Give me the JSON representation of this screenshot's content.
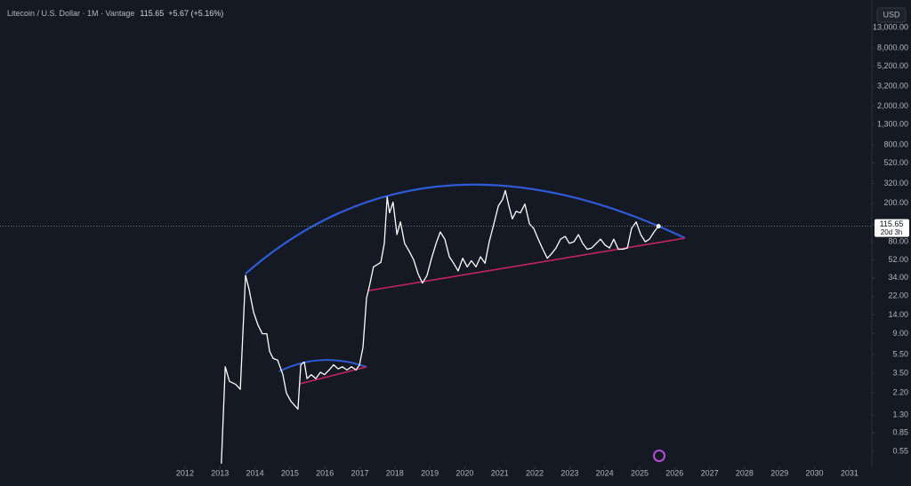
{
  "header": {
    "symbol": "Litecoin / U.S. Dollar · 1M · Vantage",
    "price": "115.65",
    "change": "+5.67 (+5.16%)",
    "currency": "USD"
  },
  "chart_data": {
    "type": "line",
    "log_scale": true,
    "grid": false,
    "countdown": "20d 3h",
    "x": [
      2013.04,
      2013.15,
      2013.27,
      2013.45,
      2013.58,
      2013.73,
      2013.83,
      2013.96,
      2014.09,
      2014.21,
      2014.34,
      2014.42,
      2014.52,
      2014.65,
      2014.8,
      2014.9,
      2015.03,
      2015.16,
      2015.23,
      2015.31,
      2015.41,
      2015.49,
      2015.61,
      2015.74,
      2015.87,
      2015.99,
      2016.12,
      2016.25,
      2016.38,
      2016.5,
      2016.63,
      2016.76,
      2016.89,
      2016.99,
      2017.09,
      2017.19,
      2017.27,
      2017.39,
      2017.6,
      2017.7,
      2017.78,
      2017.85,
      2017.95,
      2018.06,
      2018.16,
      2018.28,
      2018.41,
      2018.54,
      2018.67,
      2018.79,
      2018.92,
      2019.05,
      2019.18,
      2019.3,
      2019.43,
      2019.56,
      2019.68,
      2019.81,
      2019.94,
      2020.07,
      2020.19,
      2020.32,
      2020.45,
      2020.58,
      2020.7,
      2020.83,
      2020.96,
      2021.08,
      2021.16,
      2021.26,
      2021.36,
      2021.47,
      2021.59,
      2021.72,
      2021.85,
      2021.97,
      2022.1,
      2022.23,
      2022.36,
      2022.48,
      2022.61,
      2022.74,
      2022.87,
      2022.99,
      2023.12,
      2023.25,
      2023.37,
      2023.5,
      2023.63,
      2023.76,
      2023.88,
      2024.01,
      2024.14,
      2024.26,
      2024.39,
      2024.52,
      2024.65,
      2024.77,
      2024.9,
      2025.03,
      2025.16,
      2025.28,
      2025.41,
      2025.54
    ],
    "series": [
      {
        "color": "#ffffff",
        "values": [
          0.41,
          4.1,
          2.9,
          2.7,
          2.4,
          36,
          26,
          15,
          11,
          9,
          9,
          5.9,
          5.0,
          4.8,
          3.4,
          2.2,
          1.8,
          1.6,
          1.5,
          4.3,
          4.6,
          3.1,
          3.4,
          3.1,
          3.6,
          3.4,
          3.8,
          4.3,
          3.9,
          4.1,
          3.8,
          4.1,
          3.8,
          4.3,
          6.5,
          21,
          27.5,
          44,
          49,
          77,
          232,
          159,
          205,
          95,
          128,
          77,
          64,
          52,
          37,
          30,
          36,
          54,
          77,
          101,
          85,
          56,
          48,
          40,
          54,
          44,
          51,
          44,
          56,
          48,
          80,
          122,
          188,
          218,
          270,
          188,
          138,
          165,
          159,
          196,
          122,
          110,
          85,
          67,
          54,
          60,
          69,
          85,
          91,
          77,
          80,
          95,
          77,
          67,
          69,
          77,
          85,
          74,
          69,
          85,
          67,
          67,
          69,
          110,
          128,
          95,
          80,
          85,
          101,
          115.65
        ]
      }
    ],
    "xlim": [
      2006.71,
      2031.64
    ],
    "xticks": [
      2012,
      2013,
      2014,
      2015,
      2016,
      2017,
      2018,
      2019,
      2020,
      2021,
      2022,
      2023,
      2024,
      2025,
      2026,
      2027,
      2028,
      2029,
      2030,
      2031
    ],
    "ylim": [
      0.384,
      25000
    ],
    "yticks": [
      {
        "value": 13000,
        "label": "13,000.00"
      },
      {
        "value": 8000,
        "label": "8,000.00"
      },
      {
        "value": 5200,
        "label": "5,200.00"
      },
      {
        "value": 3200,
        "label": "3,200.00"
      },
      {
        "value": 2000,
        "label": "2,000.00"
      },
      {
        "value": 1300,
        "label": "1,300.00"
      },
      {
        "value": 800,
        "label": "800.00"
      },
      {
        "value": 520,
        "label": "520.00"
      },
      {
        "value": 320,
        "label": "320.00"
      },
      {
        "value": 200,
        "label": "200.00"
      },
      {
        "value": 120,
        "label": "120.00"
      },
      {
        "value": 80,
        "label": "80.00"
      },
      {
        "value": 52,
        "label": "52.00"
      },
      {
        "value": 34,
        "label": "34.00"
      },
      {
        "value": 22,
        "label": "22.00"
      },
      {
        "value": 14,
        "label": "14.00"
      },
      {
        "value": 9,
        "label": "9.00"
      },
      {
        "value": 5.5,
        "label": "5.50"
      },
      {
        "value": 3.5,
        "label": "3.50"
      },
      {
        "value": 2.2,
        "label": "2.20"
      },
      {
        "value": 1.3,
        "label": "1.30"
      },
      {
        "value": 0.85,
        "label": "0.85"
      },
      {
        "value": 0.55,
        "label": "0.55"
      }
    ]
  }
}
